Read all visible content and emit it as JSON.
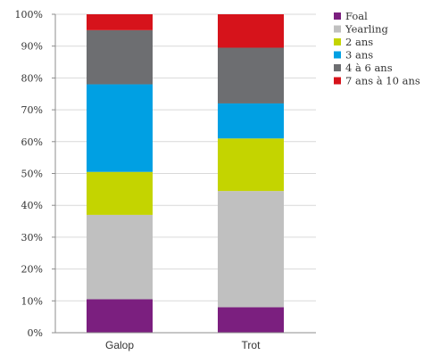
{
  "chart_data": {
    "type": "bar",
    "stacked": true,
    "percent": true,
    "categories": [
      "Galop",
      "Trot"
    ],
    "series": [
      {
        "name": "Foal",
        "color": "#7b1f7f",
        "values": [
          10.5,
          8.0
        ]
      },
      {
        "name": "Yearling",
        "color": "#c0c0c0",
        "values": [
          26.5,
          36.5
        ]
      },
      {
        "name": "2 ans",
        "color": "#c4d400",
        "values": [
          13.5,
          16.5
        ]
      },
      {
        "name": "3 ans",
        "color": "#00a0e3",
        "values": [
          27.5,
          11.0
        ]
      },
      {
        "name": "4 à 6 ans",
        "color": "#6d6e71",
        "values": [
          17.0,
          17.5
        ]
      },
      {
        "name": "7 ans à 10 ans",
        "color": "#d6131b",
        "values": [
          5.0,
          10.5
        ]
      }
    ],
    "yticks": [
      "0%",
      "10%",
      "20%",
      "30%",
      "40%",
      "50%",
      "60%",
      "70%",
      "80%",
      "90%",
      "100%"
    ],
    "ylim": [
      0,
      100
    ],
    "grid": true,
    "legend_position": "right",
    "title": "",
    "xlabel": "",
    "ylabel": ""
  }
}
